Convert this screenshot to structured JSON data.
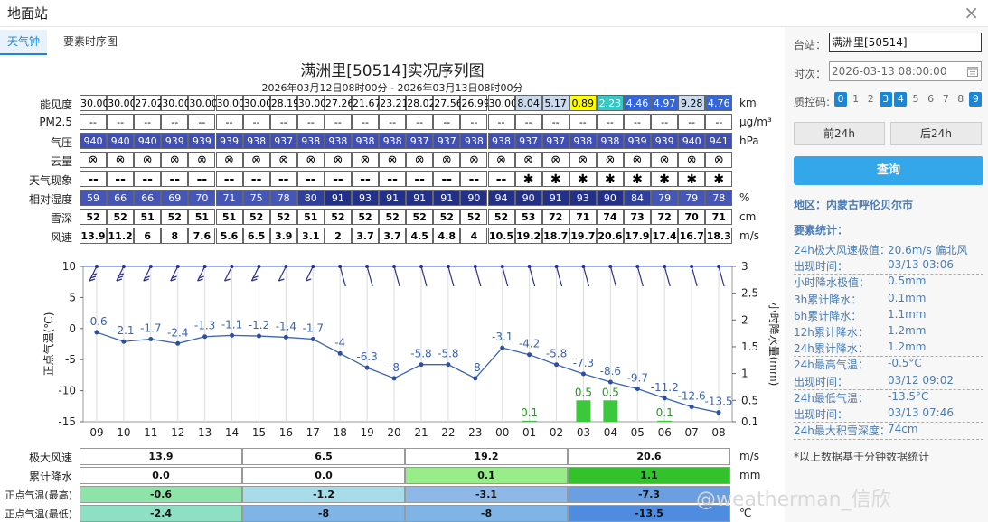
{
  "window": {
    "title": "地面站",
    "close_icon": "×"
  },
  "tabs": [
    {
      "label": "天气钟",
      "active": true
    },
    {
      "label": "要素时序图",
      "active": false
    }
  ],
  "chart": {
    "title": "满洲里[50514]实况序列图",
    "subtitle": "2026年03月12日08时00分 - 2026年03月13日08时00分"
  },
  "table": {
    "hours": [
      "09",
      "10",
      "11",
      "12",
      "13",
      "14",
      "15",
      "16",
      "17",
      "18",
      "19",
      "20",
      "21",
      "22",
      "23",
      "00",
      "01",
      "02",
      "03",
      "04",
      "05",
      "06",
      "07",
      "08"
    ],
    "rows": [
      {
        "label": "能见度",
        "unit": "km",
        "values": [
          "30.00",
          "30.00",
          "27.02",
          "30.00",
          "30.00",
          "30.00",
          "30.00",
          "28.19",
          "30.00",
          "27.26",
          "21.67",
          "23.21",
          "28.02",
          "27.56",
          "26.99",
          "30.00",
          "8.04",
          "5.17",
          "0.89",
          "2.23",
          "4.46",
          "4.97",
          "9.28",
          "4.76"
        ]
      },
      {
        "label": "PM2.5",
        "unit": "µg/m³",
        "values": [
          "--",
          "--",
          "--",
          "--",
          "--",
          "--",
          "--",
          "--",
          "--",
          "--",
          "--",
          "--",
          "--",
          "--",
          "--",
          "--",
          "--",
          "--",
          "--",
          "--",
          "--",
          "--",
          "--",
          "--"
        ]
      },
      {
        "label": "气压",
        "unit": "hPa",
        "values": [
          "940",
          "940",
          "940",
          "939",
          "939",
          "939",
          "938",
          "937",
          "938",
          "938",
          "938",
          "938",
          "937",
          "937",
          "938",
          "938",
          "937",
          "937",
          "938",
          "938",
          "939",
          "939",
          "940",
          "941"
        ]
      },
      {
        "label": "云量",
        "unit": "",
        "values": [
          "⊗",
          "⊗",
          "⊗",
          "⊗",
          "⊗",
          "⊗",
          "⊗",
          "⊗",
          "⊗",
          "⊗",
          "⊗",
          "⊗",
          "⊗",
          "⊗",
          "⊗",
          "⊗",
          "⊗",
          "⊗",
          "⊗",
          "⊗",
          "⊗",
          "⊗",
          "⊗",
          "⊗"
        ]
      },
      {
        "label": "天气现象",
        "unit": "",
        "values": [
          "--",
          "--",
          "--",
          "--",
          "--",
          "--",
          "--",
          "--",
          "--",
          "--",
          "--",
          "--",
          "--",
          "--",
          "--",
          "--",
          "✱",
          "✱",
          "✱",
          "✱",
          "✱",
          "✱",
          "✱",
          "✱"
        ]
      },
      {
        "label": "相对湿度",
        "unit": "%",
        "values": [
          "59",
          "66",
          "66",
          "69",
          "70",
          "71",
          "75",
          "78",
          "80",
          "91",
          "93",
          "91",
          "91",
          "91",
          "90",
          "94",
          "90",
          "91",
          "93",
          "90",
          "84",
          "79",
          "79",
          "78"
        ]
      },
      {
        "label": "雪深",
        "unit": "cm",
        "values": [
          "52",
          "52",
          "51",
          "52",
          "51",
          "51",
          "52",
          "52",
          "51",
          "52",
          "52",
          "52",
          "52",
          "52",
          "52",
          "52",
          "53",
          "72",
          "71",
          "74",
          "73",
          "72",
          "70",
          "71"
        ]
      },
      {
        "label": "风速",
        "unit": "m/s",
        "values": [
          "13.9",
          "11.2",
          "6",
          "8",
          "7.6",
          "5.6",
          "6.5",
          "3.9",
          "3.1",
          "2",
          "3.7",
          "3.7",
          "4.5",
          "4.8",
          "4",
          "10.5",
          "19.2",
          "18.7",
          "19.7",
          "20.6",
          "17.9",
          "17.4",
          "16.7",
          "18.3"
        ]
      }
    ]
  },
  "chart_data": {
    "type": "line",
    "x": [
      "09",
      "10",
      "11",
      "12",
      "13",
      "14",
      "15",
      "16",
      "17",
      "18",
      "19",
      "20",
      "21",
      "22",
      "23",
      "00",
      "01",
      "02",
      "03",
      "04",
      "05",
      "06",
      "07",
      "08"
    ],
    "series": [
      {
        "values": [
          -0.6,
          -2.1,
          -1.7,
          -2.4,
          -1.3,
          -1.1,
          -1.2,
          -1.4,
          -1.7,
          -4,
          -6.3,
          -8,
          -5.8,
          -5.8,
          -8,
          -3.1,
          -4.2,
          -5.8,
          -7.3,
          -8.6,
          -9.7,
          -11.2,
          -12.6,
          -13.5
        ]
      },
      {
        "type": "bar",
        "values": [
          0,
          0,
          0,
          0,
          0,
          0,
          0,
          0,
          0,
          0,
          0,
          0,
          0,
          0,
          0,
          0,
          0.1,
          0,
          0.5,
          0.5,
          0,
          0.1,
          0,
          0
        ]
      }
    ],
    "ylabel": "正点气温(℃)",
    "y2label": "小时降水量(mm)",
    "ylim": [
      -15,
      10
    ],
    "yticks": [
      10,
      5,
      0,
      -5,
      -10,
      -15
    ],
    "y2lim": [
      0.1,
      3
    ],
    "y2ticks": [
      "3",
      "2.5",
      "2",
      "1.5",
      "1",
      "0.5",
      "0.1"
    ]
  },
  "bottom": {
    "rows": [
      {
        "label": "极大风速",
        "unit": "m/s",
        "values": [
          "13.9",
          "6.5",
          "19.2",
          "20.6"
        ]
      },
      {
        "label": "累计降水",
        "unit": "mm",
        "values": [
          "0.0",
          "0.0",
          "0.1",
          "1.1"
        ]
      },
      {
        "label": "正点气温(最高)",
        "unit": "",
        "values": [
          "-0.6",
          "-1.2",
          "-3.1",
          "-7.3"
        ]
      },
      {
        "label": "正点气温(最低)",
        "unit": "℃",
        "values": [
          "-2.4",
          "-8",
          "-8",
          "-13.5"
        ]
      }
    ]
  },
  "side": {
    "station_label": "台站：",
    "station_value": "满洲里[50514]",
    "time_label": "时次：",
    "time_value": "2026-03-13 08:00:00",
    "calendar_icon": "calendar-icon",
    "qc_label": "质控码:",
    "qc_codes": [
      {
        "v": "0",
        "on": true
      },
      {
        "v": "1",
        "on": false
      },
      {
        "v": "2",
        "on": false
      },
      {
        "v": "3",
        "on": true
      },
      {
        "v": "4",
        "on": true
      },
      {
        "v": "5",
        "on": false
      },
      {
        "v": "6",
        "on": false
      },
      {
        "v": "7",
        "on": false
      },
      {
        "v": "8",
        "on": false
      },
      {
        "v": "9",
        "on": true
      }
    ],
    "prev_label": "前24h",
    "next_label": "后24h",
    "query_label": "查询",
    "region": "地区：内蒙古呼伦贝尔市",
    "stats_title": "要素统计：",
    "stats": [
      {
        "label": "24h极大风速极值：",
        "value": "20.6m/s 偏北风"
      },
      {
        "label": "出现时间：",
        "value": "03/13 03:06"
      },
      {
        "label": "小时降水极值：",
        "value": "0.5mm"
      },
      {
        "label": "3h累计降水：",
        "value": "0.1mm"
      },
      {
        "label": "6h累计降水：",
        "value": "1.1mm"
      },
      {
        "label": "12h累计降水：",
        "value": "1.2mm"
      },
      {
        "label": "24h累计降水：",
        "value": "1.2mm"
      },
      {
        "label": "24h最高气温：",
        "value": "-0.5°C"
      },
      {
        "label": "出现时间：",
        "value": "03/12 09:02"
      },
      {
        "label": "24h最低气温：",
        "value": "-13.5°C"
      },
      {
        "label": "出现时间：",
        "value": "03/13 07:46"
      },
      {
        "label": "24h最大积雪深度：",
        "value": "74cm"
      }
    ],
    "footnote": "*以上数据基于分钟数据统计"
  },
  "watermark": "@weatherman_信欣"
}
